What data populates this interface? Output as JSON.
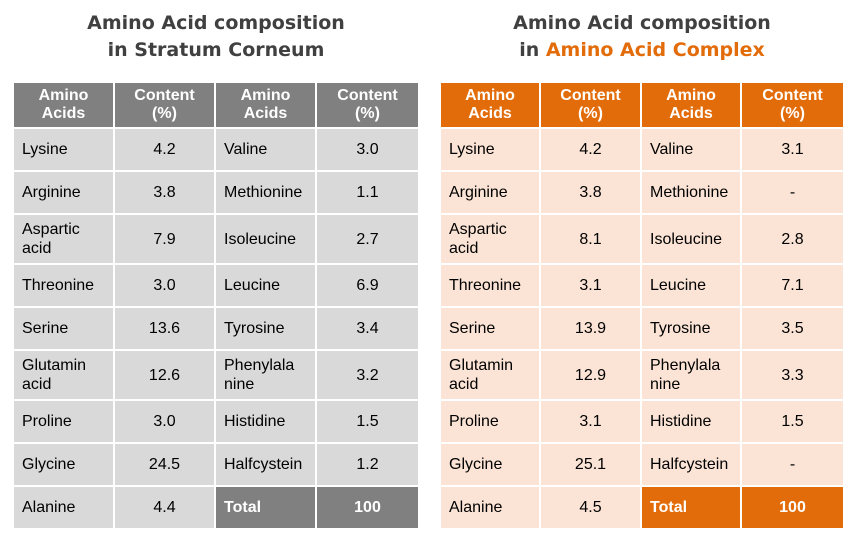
{
  "left": {
    "title_line1": "Amino Acid composition",
    "title_line2": "in Stratum Corneum",
    "headers": [
      "Amino\nAcids",
      "Content\n(%)",
      "Amino\nAcids",
      "Content\n(%)"
    ],
    "rows": [
      [
        "Lysine",
        "4.2",
        "Valine",
        "3.0"
      ],
      [
        "Arginine",
        "3.8",
        "Methionine",
        "1.1"
      ],
      [
        "Aspartic\nacid",
        "7.9",
        "Isoleucine",
        "2.7"
      ],
      [
        "Threonine",
        "3.0",
        "Leucine",
        "6.9"
      ],
      [
        "Serine",
        "13.6",
        "Tyrosine",
        "3.4"
      ],
      [
        "Glutamin\nacid",
        "12.6",
        "Phenylala\nnine",
        "3.2"
      ],
      [
        "Proline",
        "3.0",
        "Histidine",
        "1.5"
      ],
      [
        "Glycine",
        "24.5",
        "Halfcystein",
        "1.2"
      ],
      [
        "Alanine",
        "4.4",
        "Total",
        "100"
      ]
    ]
  },
  "right": {
    "title_line1": "Amino Acid composition",
    "title_line2_prefix": "in ",
    "title_line2_highlight": "Amino Acid Complex",
    "headers": [
      "Amino\nAcids",
      "Content\n(%)",
      "Amino\nAcids",
      "Content\n(%)"
    ],
    "rows": [
      [
        "Lysine",
        "4.2",
        "Valine",
        "3.1"
      ],
      [
        "Arginine",
        "3.8",
        "Methionine",
        "-"
      ],
      [
        "Aspartic\nacid",
        "8.1",
        "Isoleucine",
        "2.8"
      ],
      [
        "Threonine",
        "3.1",
        "Leucine",
        "7.1"
      ],
      [
        "Serine",
        "13.9",
        "Tyrosine",
        "3.5"
      ],
      [
        "Glutamin\nacid",
        "12.9",
        "Phenylala\nnine",
        "3.3"
      ],
      [
        "Proline",
        "3.1",
        "Histidine",
        "1.5"
      ],
      [
        "Glycine",
        "25.1",
        "Halfcystein",
        "-"
      ],
      [
        "Alanine",
        "4.5",
        "Total",
        "100"
      ]
    ]
  },
  "colors": {
    "grey_header": "#808080",
    "grey_cell": "#d9d9d9",
    "orange_header": "#e36c0a",
    "orange_cell": "#fbe4d5",
    "title_text": "#404040"
  }
}
